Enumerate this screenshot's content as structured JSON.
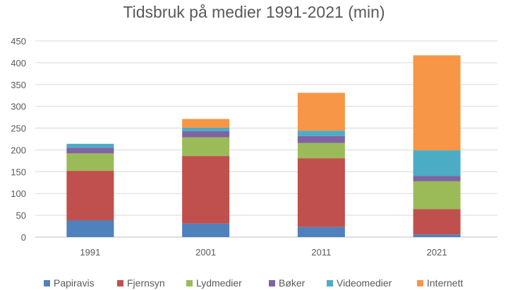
{
  "chart_data": {
    "type": "bar",
    "stacked": true,
    "title": "Tidsbruk på medier 1991-2021 (min)",
    "xlabel": "",
    "ylabel": "",
    "ylim": [
      0,
      450
    ],
    "yticks": [
      0,
      50,
      100,
      150,
      200,
      250,
      300,
      350,
      400,
      450
    ],
    "grid": true,
    "legend_position": "bottom",
    "categories": [
      "1991",
      "2001",
      "2011",
      "2021"
    ],
    "series": [
      {
        "name": "Papiravis",
        "color": "#4F81BD",
        "values": [
          38,
          31,
          23,
          6
        ]
      },
      {
        "name": "Fjernsyn",
        "color": "#C0504D",
        "values": [
          114,
          155,
          158,
          58
        ]
      },
      {
        "name": "Lydmedier",
        "color": "#9BBB59",
        "values": [
          40,
          43,
          35,
          64
        ]
      },
      {
        "name": "Bøker",
        "color": "#8064A2",
        "values": [
          13,
          14,
          16,
          12
        ]
      },
      {
        "name": "Videomedier",
        "color": "#4BACC6",
        "values": [
          9,
          8,
          12,
          59
        ]
      },
      {
        "name": "Internett",
        "color": "#F79646",
        "values": [
          0,
          20,
          87,
          218
        ]
      }
    ]
  }
}
